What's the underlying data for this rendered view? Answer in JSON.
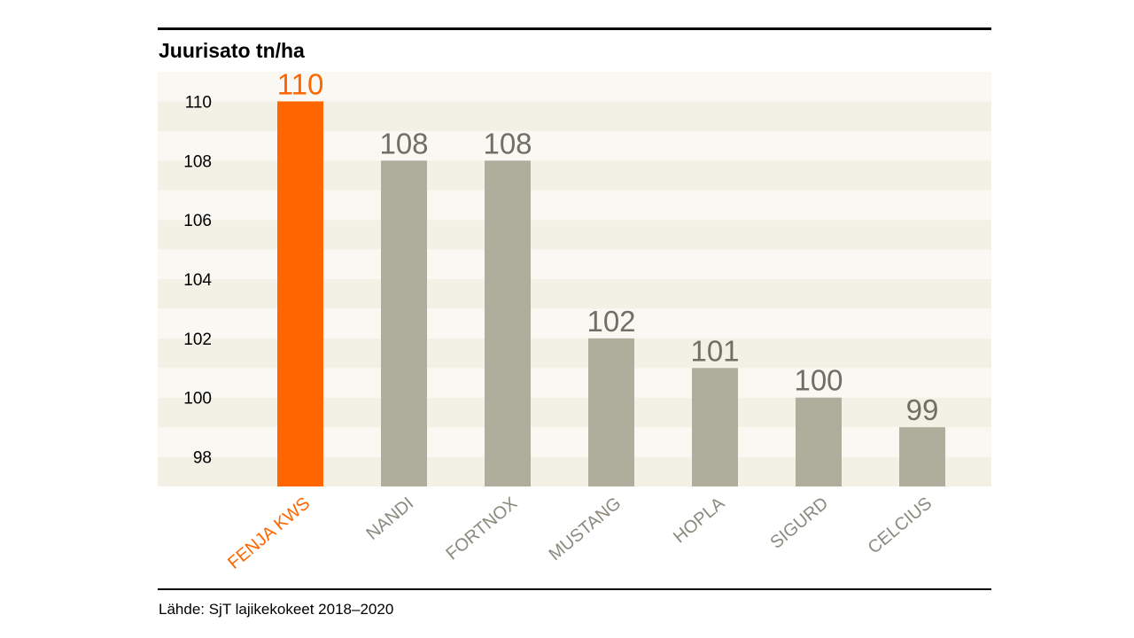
{
  "header": {
    "title": "Juurisato tn/ha"
  },
  "footer": {
    "source": "Lähde: SjT lajikekokeet 2018–2020"
  },
  "colors": {
    "highlight": "#ff6600",
    "bar": "#afad9b",
    "value_label": "#6f6f64",
    "category_label": "#8c8a7d",
    "band_dark": "#f3f0e5",
    "band_light": "#f9f8f3"
  },
  "chart_data": {
    "type": "bar",
    "title": "Juurisato tn/ha",
    "categories": [
      "FENJA KWS",
      "NANDI",
      "FORTNOX",
      "MUSTANG",
      "HOPLA",
      "SIGURD",
      "CELCIUS"
    ],
    "values": [
      110,
      108,
      108,
      102,
      101,
      100,
      99
    ],
    "highlight_index": 0,
    "ylim": [
      97,
      111
    ],
    "yticks": [
      98,
      100,
      102,
      104,
      106,
      108,
      110
    ],
    "xlabel": "",
    "ylabel": "",
    "grid": false,
    "legend": "none"
  }
}
